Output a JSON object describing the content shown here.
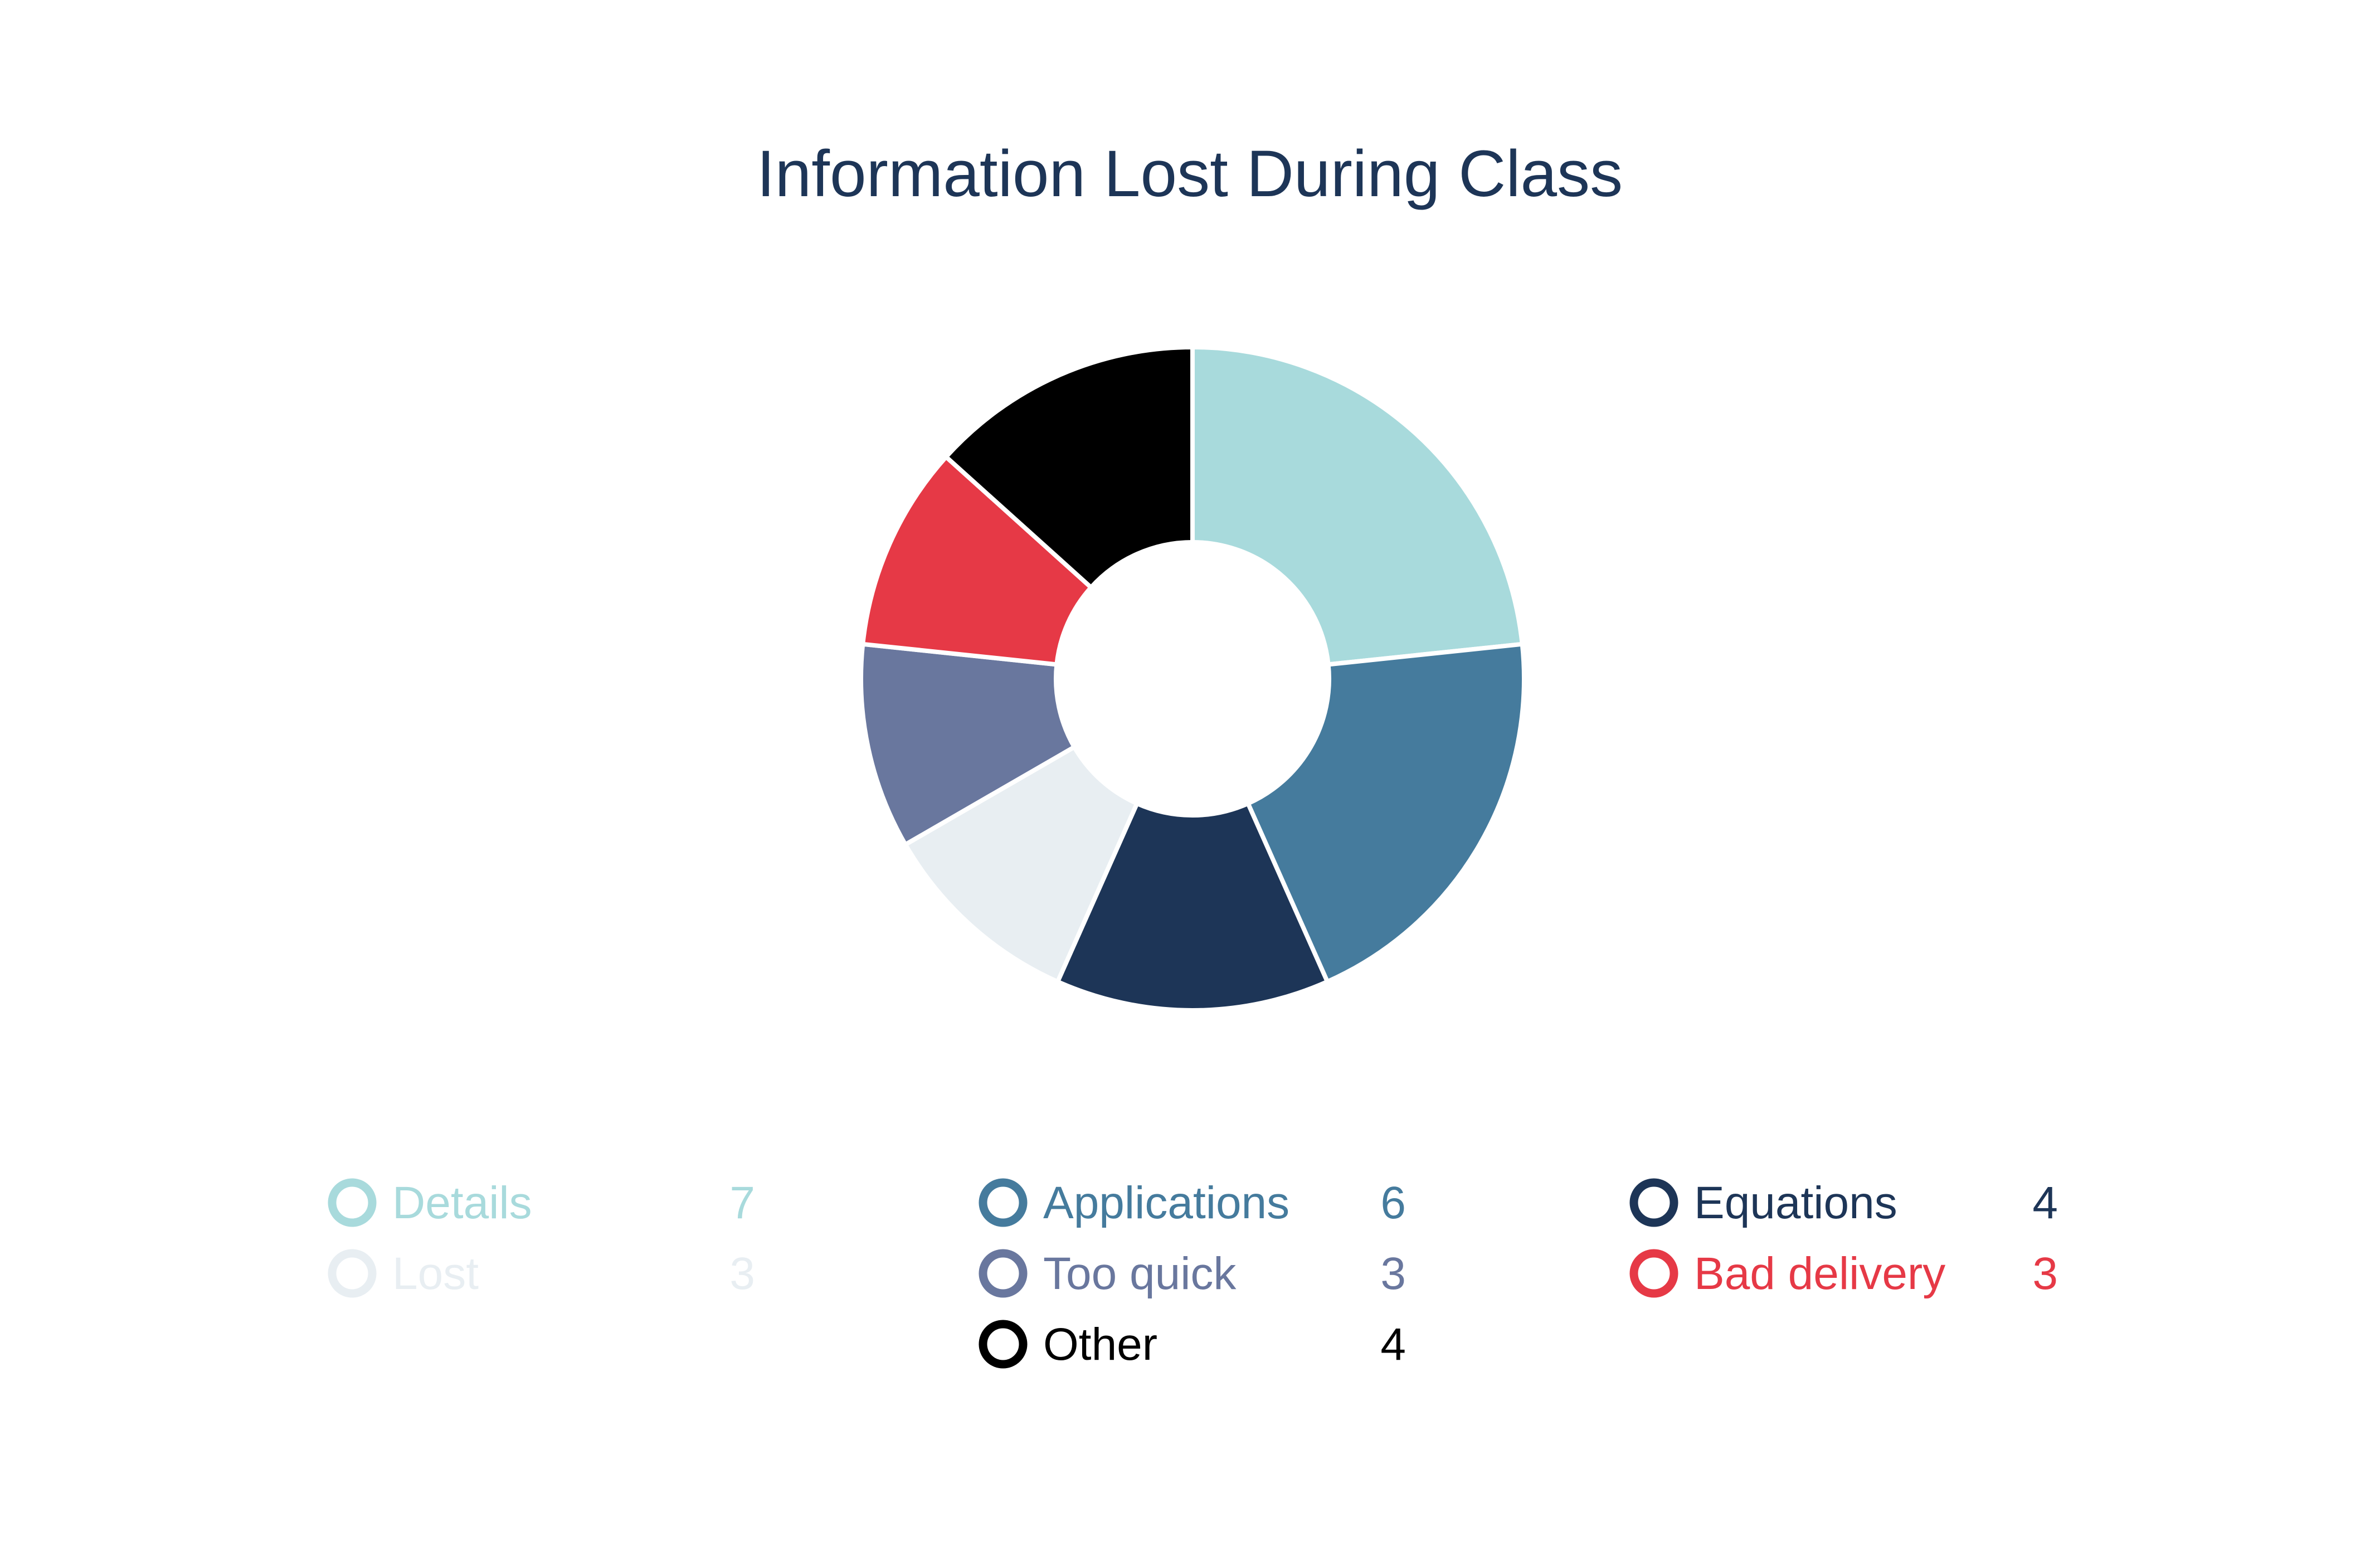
{
  "chart_data": {
    "type": "pie",
    "title": "Information Lost During Class",
    "donut": true,
    "legend_position": "bottom",
    "slices": [
      {
        "label": "Details",
        "value": 7,
        "color": "#A8DADC"
      },
      {
        "label": "Applications",
        "value": 6,
        "color": "#457B9D"
      },
      {
        "label": "Equations",
        "value": 4,
        "color": "#1D3557"
      },
      {
        "label": "Lost",
        "value": 3,
        "color": "#E8EEF2"
      },
      {
        "label": "Too quick",
        "value": 3,
        "color": "#69779E"
      },
      {
        "label": "Bad delivery",
        "value": 3,
        "color": "#E63946"
      },
      {
        "label": "Other",
        "value": 4,
        "color": "#000000"
      }
    ]
  },
  "colors": {
    "title": "#1D3557",
    "background": "#FFFFFF",
    "separator": "#FFFFFF"
  }
}
